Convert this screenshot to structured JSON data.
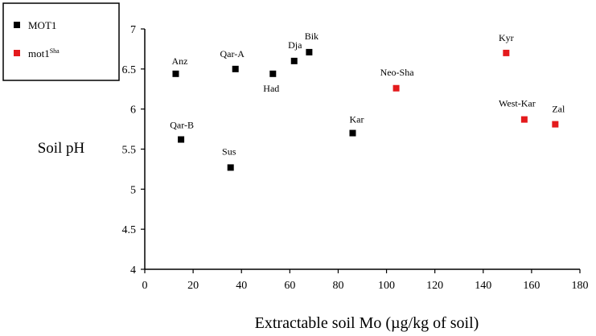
{
  "chart_data": {
    "type": "scatter",
    "title": "",
    "xlabel": "Extractable soil Mo  (µg/kg of soil)",
    "ylabel": "Soil pH",
    "xlim": [
      0,
      180
    ],
    "ylim": [
      4,
      7
    ],
    "x_ticks": [
      "0",
      "20",
      "40",
      "60",
      "80",
      "100",
      "120",
      "140",
      "160",
      "180"
    ],
    "y_ticks": [
      "4",
      "4.5",
      "5",
      "5.5",
      "6",
      "6.5",
      "7"
    ],
    "grid": false,
    "legend_position": "top-left",
    "series": [
      {
        "legend_label": "MOT1",
        "legend_sup": "",
        "color": "#000000",
        "points": [
          {
            "label": "Anz",
            "x": 12.8,
            "y": 6.44
          },
          {
            "label": "Qar-A",
            "x": 37.5,
            "y": 6.5
          },
          {
            "label": "Had",
            "x": 53.0,
            "y": 6.44
          },
          {
            "label": "Dja",
            "x": 61.8,
            "y": 6.6
          },
          {
            "label": "Bik",
            "x": 68.0,
            "y": 6.71
          },
          {
            "label": "Qar-B",
            "x": 15.0,
            "y": 5.62
          },
          {
            "label": "Sus",
            "x": 35.5,
            "y": 5.27
          },
          {
            "label": "Kar",
            "x": 86.0,
            "y": 5.7
          }
        ]
      },
      {
        "legend_label": "mot1",
        "legend_sup": "Sha",
        "color": "#e41a1c",
        "points": [
          {
            "label": "Neo-Sha",
            "x": 104.0,
            "y": 6.26
          },
          {
            "label": "Kyr",
            "x": 149.5,
            "y": 6.7
          },
          {
            "label": "West-Kar",
            "x": 157.0,
            "y": 5.87
          },
          {
            "label": "Zal",
            "x": 169.8,
            "y": 5.81
          }
        ]
      }
    ]
  }
}
